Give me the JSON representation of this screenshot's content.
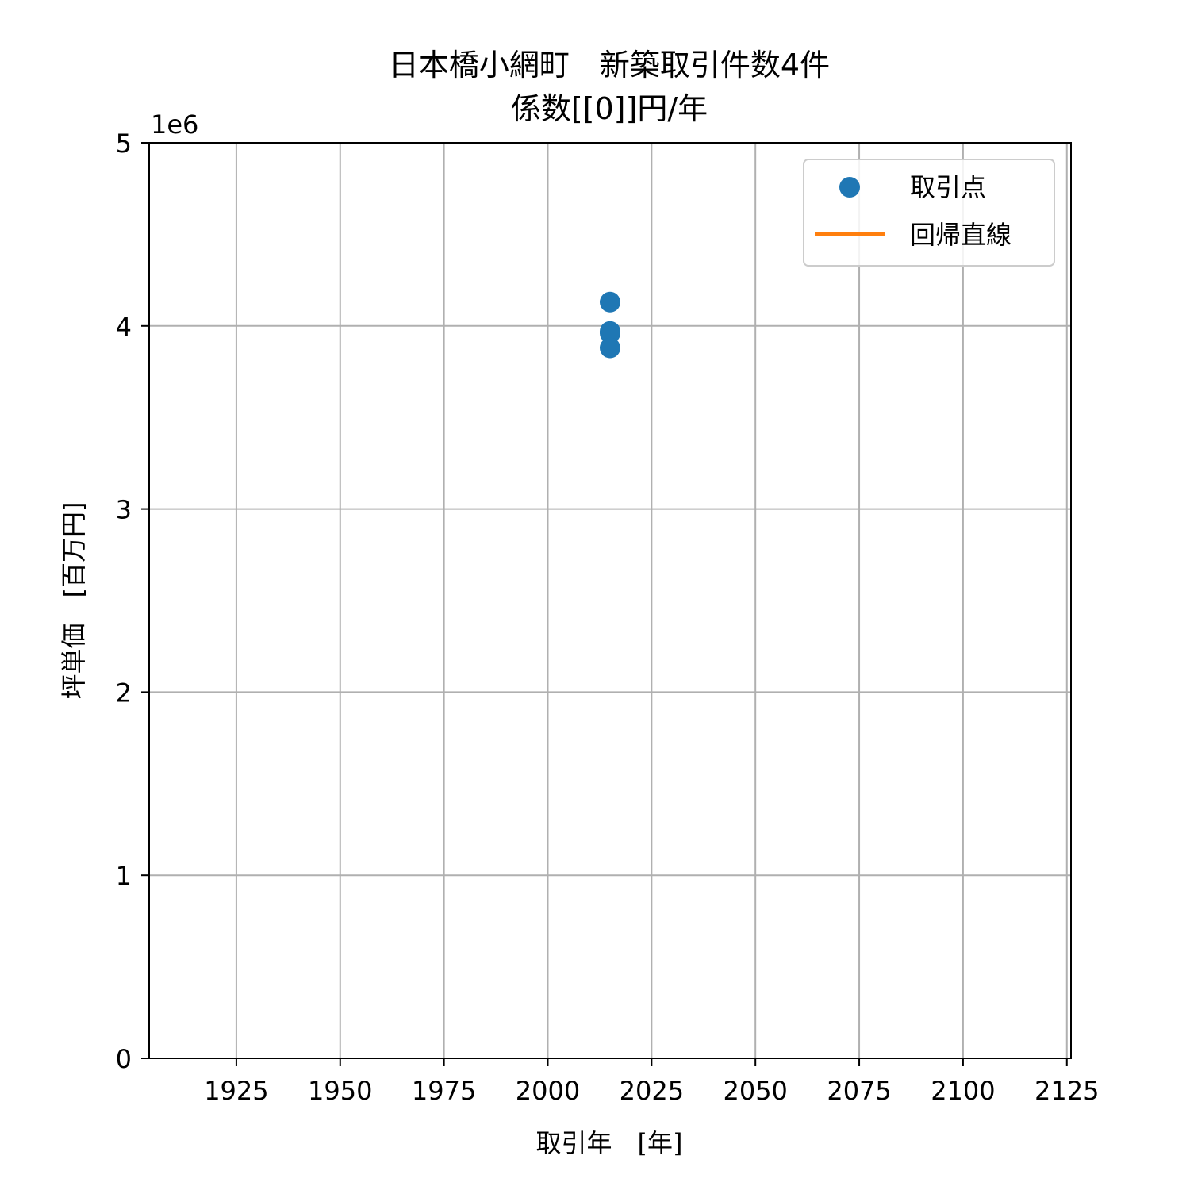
{
  "chart_data": {
    "type": "scatter",
    "title_line1": "日本橋小網町　新築取引件数4件",
    "title_line2": "係数[[0]]円/年",
    "xlabel": "取引年　[年]",
    "ylabel": "坪単価　[百万円]",
    "y_offset_label": "1e6",
    "xlim": [
      1904,
      2126
    ],
    "ylim": [
      0,
      5000000
    ],
    "x_ticks": [
      1925,
      1950,
      1975,
      2000,
      2025,
      2050,
      2075,
      2100,
      2125
    ],
    "y_ticks": [
      0,
      1000000,
      2000000,
      3000000,
      4000000,
      5000000
    ],
    "y_tick_labels": [
      "0",
      "1",
      "2",
      "3",
      "4",
      "5"
    ],
    "grid": true,
    "legend_position": "top-right",
    "series": [
      {
        "name": "取引点",
        "kind": "scatter",
        "color": "#1f77b4",
        "points": [
          {
            "x": 2015,
            "y": 4130000
          },
          {
            "x": 2015,
            "y": 3970000
          },
          {
            "x": 2015,
            "y": 3960000
          },
          {
            "x": 2015,
            "y": 3880000
          }
        ]
      },
      {
        "name": "回帰直線",
        "kind": "line",
        "color": "#ff7f0e",
        "points": []
      }
    ]
  }
}
